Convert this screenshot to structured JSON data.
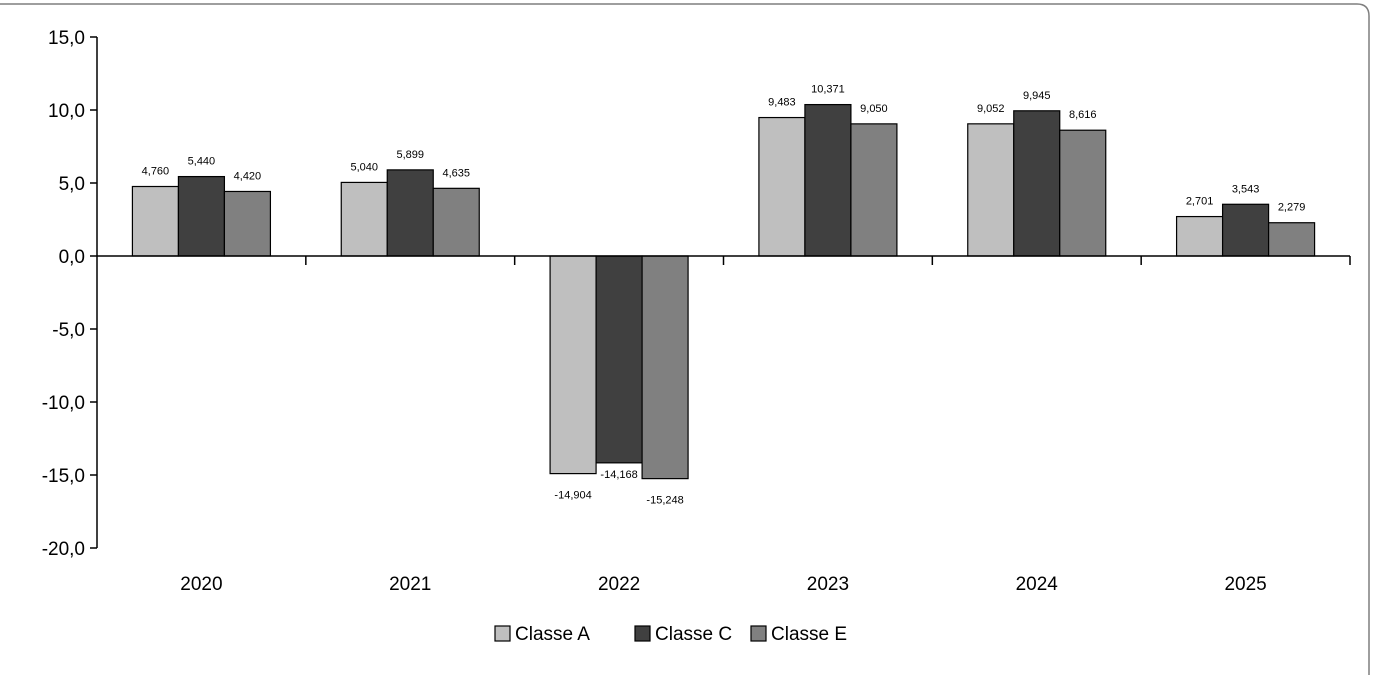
{
  "chart_data": {
    "type": "bar",
    "categories": [
      "2020",
      "2021",
      "2022",
      "2023",
      "2024",
      "2025"
    ],
    "series": [
      {
        "name": "Classe A",
        "color": "#bfbfbf",
        "values": [
          4.76,
          5.04,
          -14.904,
          9.483,
          9.052,
          2.701
        ],
        "labels": [
          "4,760",
          "5,040",
          "-14,904",
          "9,483",
          "9,052",
          "2,701"
        ]
      },
      {
        "name": "Classe C",
        "color": "#404040",
        "values": [
          5.44,
          5.899,
          -14.168,
          10.371,
          9.945,
          3.543
        ],
        "labels": [
          "5,440",
          "5,899",
          "-14,168",
          "10,371",
          "9,945",
          "3,543"
        ]
      },
      {
        "name": "Classe E",
        "color": "#808080",
        "values": [
          4.42,
          4.635,
          -15.248,
          9.05,
          8.616,
          2.279
        ],
        "labels": [
          "4,420",
          "4,635",
          "-15,248",
          "9,050",
          "8,616",
          "2,279"
        ]
      }
    ],
    "ylim": [
      -20,
      15
    ],
    "yticks": [
      15,
      10,
      5,
      0,
      -5,
      -10,
      -15,
      -20
    ],
    "ytick_labels": [
      "15,0",
      "10,0",
      "5,0",
      "0,0",
      "-5,0",
      "-10,0",
      "-15,0",
      "-20,0"
    ],
    "title": "",
    "xlabel": "",
    "ylabel": "",
    "grid": false,
    "legend_position": "bottom-center"
  }
}
